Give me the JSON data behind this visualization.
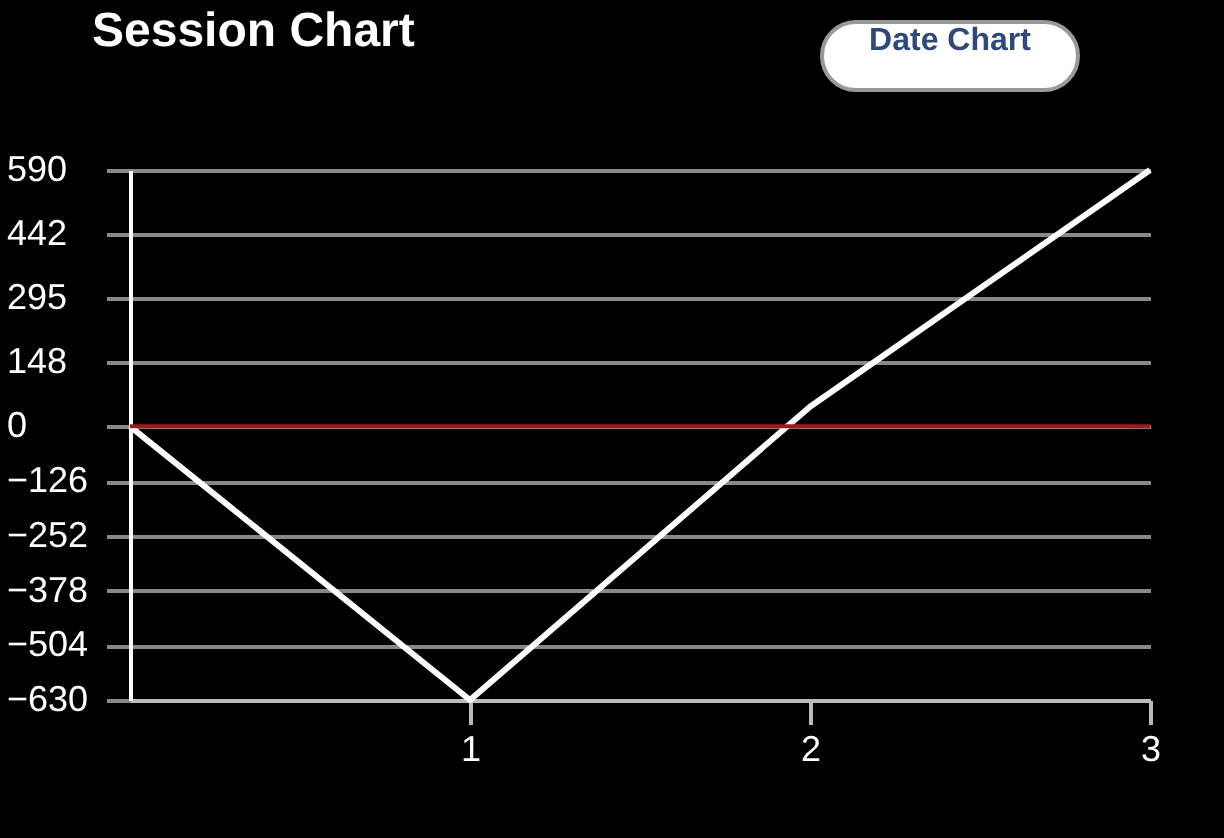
{
  "chart_data": {
    "type": "line",
    "title": "Session Chart",
    "x": [
      0,
      1,
      2,
      3
    ],
    "series": [
      {
        "color": "#ffffff",
        "values": [
          0,
          -630,
          45,
          590
        ]
      }
    ],
    "xlim": [
      0,
      3
    ],
    "xticks": [
      1,
      2,
      3
    ],
    "ylim": [
      -630,
      590
    ],
    "yticks": [
      590,
      442,
      295,
      148,
      0,
      -126,
      -252,
      -378,
      -504,
      -630
    ],
    "grid": "y",
    "ref_lines": [
      {
        "axis": "y",
        "value": 0,
        "color": "#9b1c1c"
      }
    ],
    "annotations": [
      "Date Chart"
    ]
  }
}
